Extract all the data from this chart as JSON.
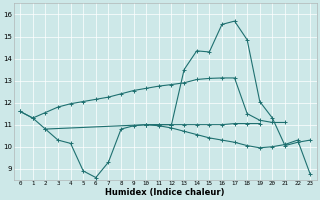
{
  "xlabel": "Humidex (Indice chaleur)",
  "x_ticks": [
    0,
    1,
    2,
    3,
    4,
    5,
    6,
    7,
    8,
    9,
    10,
    11,
    12,
    13,
    14,
    15,
    16,
    17,
    18,
    19,
    20,
    21,
    22,
    23
  ],
  "y_ticks": [
    9,
    10,
    11,
    12,
    13,
    14,
    15,
    16
  ],
  "ylim": [
    8.5,
    16.5
  ],
  "xlim": [
    -0.5,
    23.5
  ],
  "bg_color": "#cde8e8",
  "line_color": "#1e7070",
  "series": {
    "line_upper": [
      11.6,
      11.3,
      11.55,
      11.8,
      11.95,
      12.05,
      12.15,
      12.25,
      12.4,
      12.55,
      12.65,
      12.75,
      12.82,
      12.9,
      13.05,
      13.1,
      13.12,
      13.12,
      11.5,
      11.2,
      11.1,
      11.1,
      null,
      null
    ],
    "line_mid_flat": [
      null,
      null,
      10.8,
      null,
      null,
      null,
      null,
      null,
      null,
      null,
      11.0,
      11.0,
      11.0,
      11.0,
      11.0,
      11.0,
      11.0,
      11.05,
      11.05,
      11.05,
      null,
      null,
      null,
      null
    ],
    "line_valley": [
      11.6,
      11.3,
      10.8,
      10.3,
      10.15,
      8.9,
      8.6,
      9.3,
      10.8,
      10.95,
      11.0,
      11.0,
      11.0,
      13.5,
      14.35,
      14.3,
      15.55,
      15.7,
      14.85,
      12.05,
      11.3,
      10.05,
      10.2,
      10.3
    ],
    "line_lower": [
      null,
      null,
      null,
      null,
      null,
      null,
      null,
      null,
      null,
      null,
      11.0,
      10.95,
      10.85,
      10.7,
      10.55,
      10.4,
      10.3,
      10.2,
      10.05,
      9.95,
      10.0,
      10.1,
      10.3,
      8.75
    ]
  }
}
